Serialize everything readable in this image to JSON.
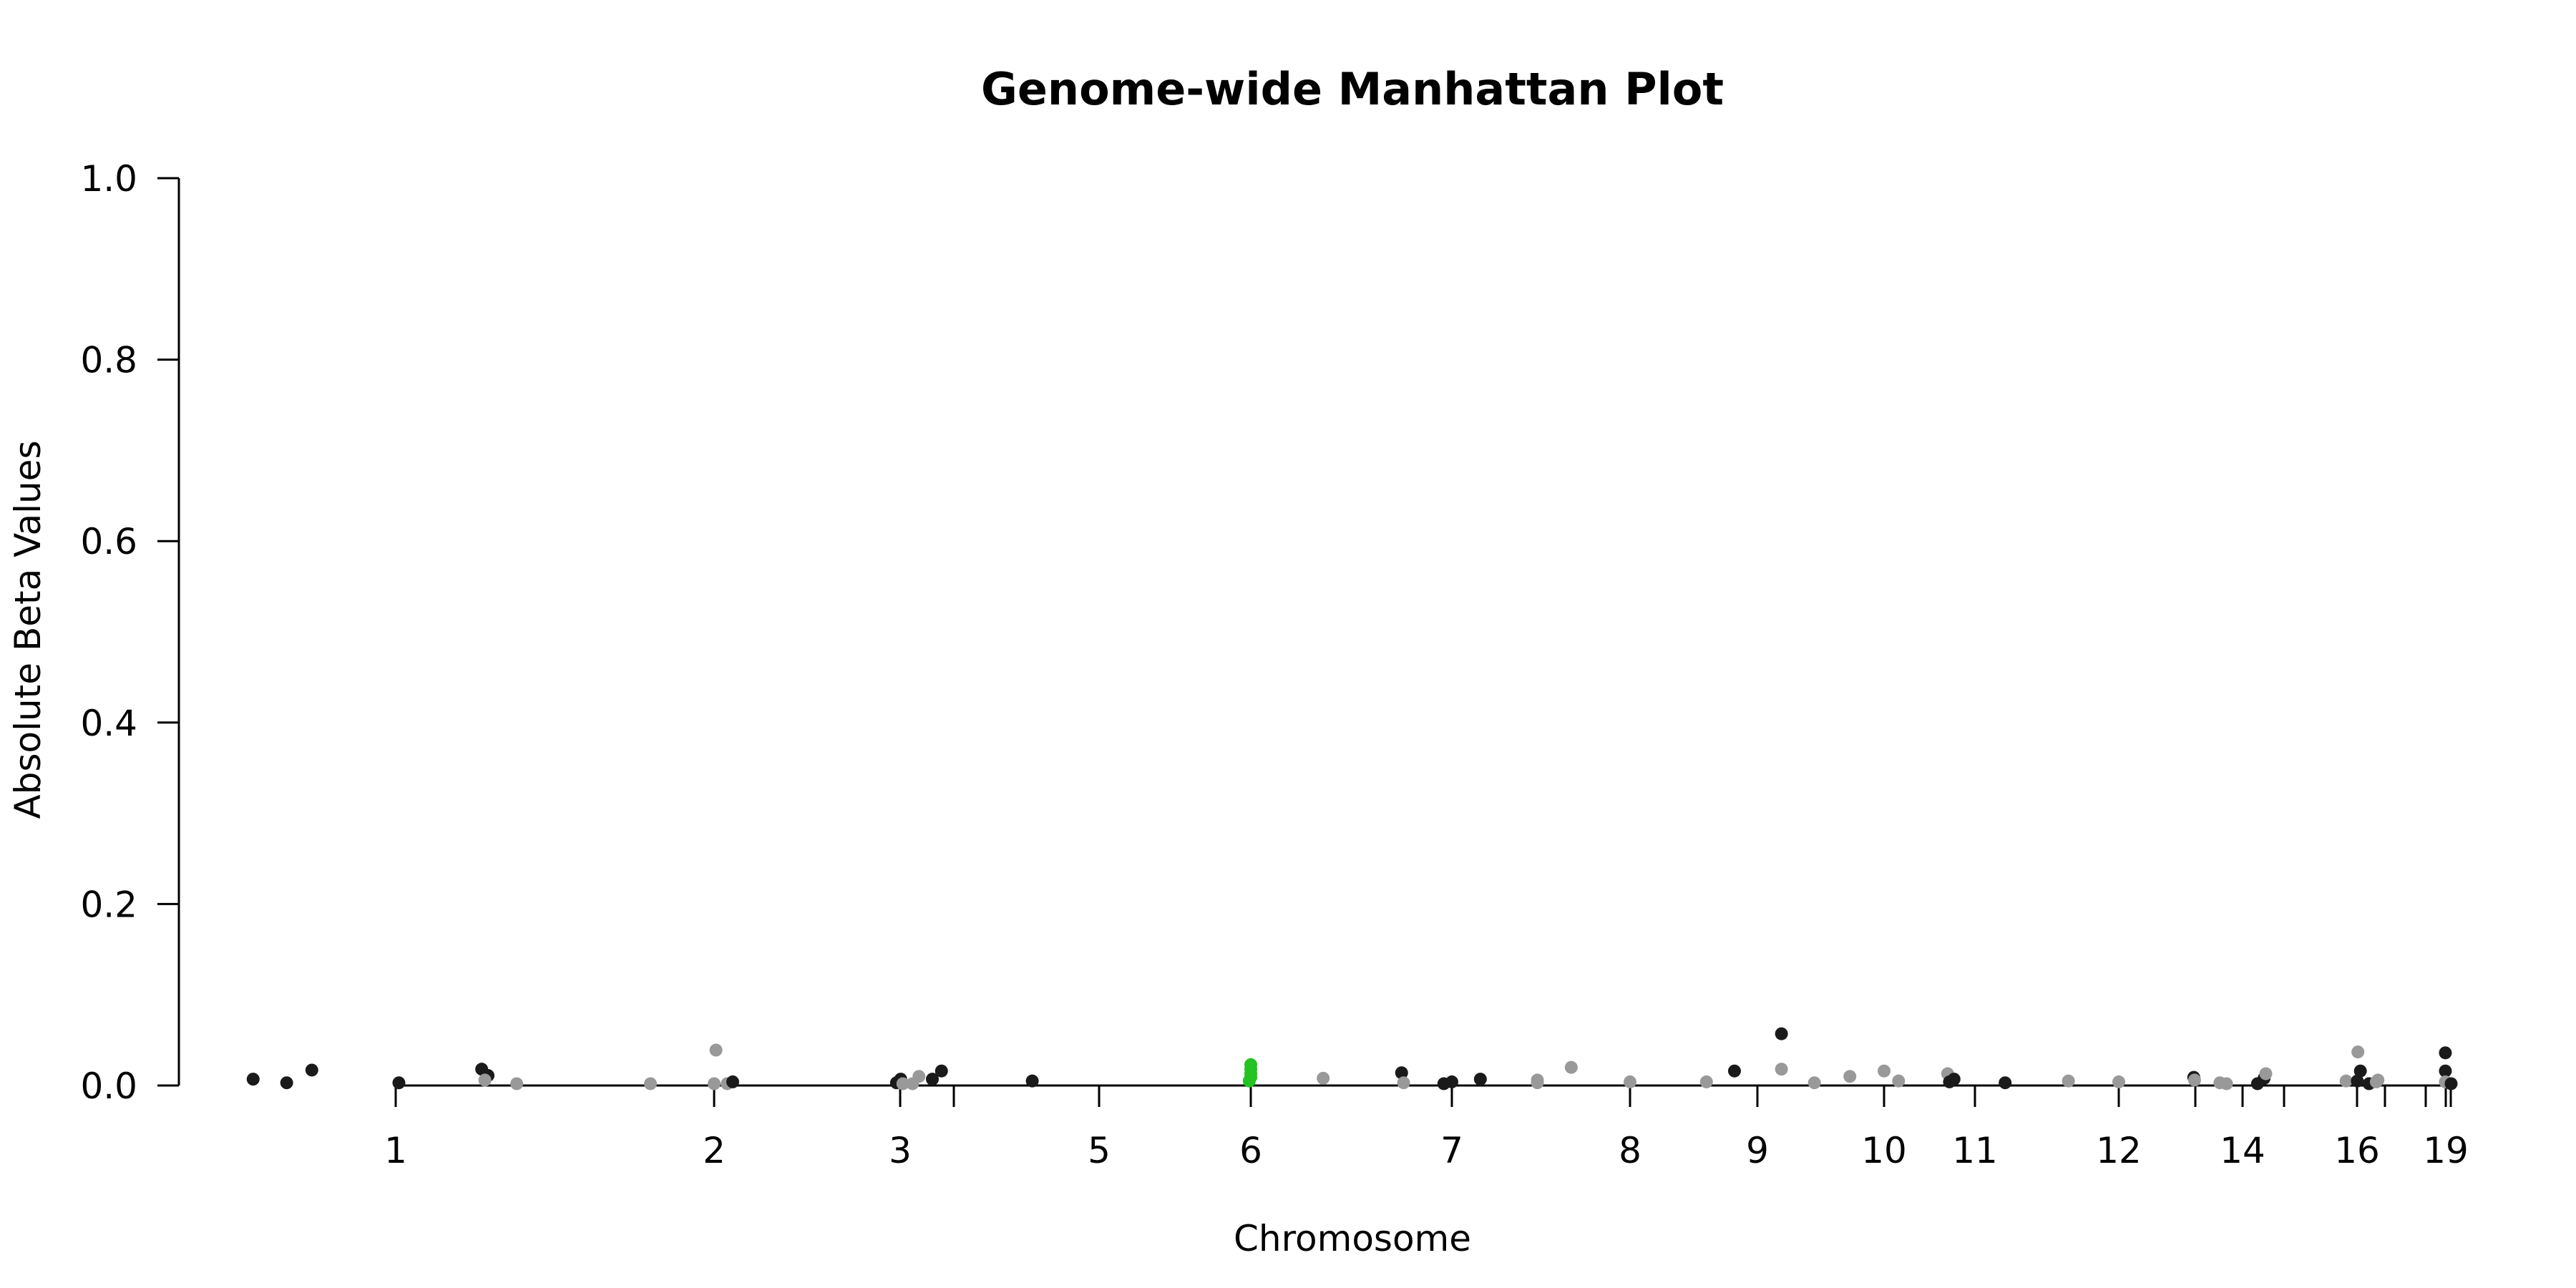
{
  "chart_data": {
    "type": "scatter",
    "title": "Genome-wide Manhattan Plot",
    "xlabel": "Chromosome",
    "ylabel": "Absolute Beta Values",
    "ylim": [
      0,
      1.0
    ],
    "y_ticks": [
      "0.0",
      "0.2",
      "0.4",
      "0.6",
      "0.8",
      "1.0"
    ],
    "x_ticks": [
      {
        "label": "1",
        "pos": 1.0
      },
      {
        "label": "2",
        "pos": 2.0
      },
      {
        "label": "3",
        "pos": 3.0
      },
      {
        "label": "",
        "pos": 4.0
      },
      {
        "label": "5",
        "pos": 5.0
      },
      {
        "label": "6",
        "pos": 6.0
      },
      {
        "label": "7",
        "pos": 7.0
      },
      {
        "label": "8",
        "pos": 8.0
      },
      {
        "label": "9",
        "pos": 9.0
      },
      {
        "label": "10",
        "pos": 10.0
      },
      {
        "label": "11",
        "pos": 11.0
      },
      {
        "label": "12",
        "pos": 12.0
      },
      {
        "label": "",
        "pos": 13.0
      },
      {
        "label": "14",
        "pos": 14.0
      },
      {
        "label": "",
        "pos": 15.0
      },
      {
        "label": "16",
        "pos": 16.0
      },
      {
        "label": "",
        "pos": 17.0
      },
      {
        "label": "",
        "pos": 18.0
      },
      {
        "label": "19",
        "pos": 19.0
      },
      {
        "label": "",
        "pos": 19.05
      }
    ],
    "colors": {
      "dark": "#1a1a1a",
      "light": "#999999",
      "highlight": "#22c322"
    },
    "points": [
      {
        "x": 0.32,
        "y": 0.007,
        "c": "dark"
      },
      {
        "x": 0.48,
        "y": 0.003,
        "c": "dark"
      },
      {
        "x": 0.6,
        "y": 0.017,
        "c": "dark"
      },
      {
        "x": 1.01,
        "y": 0.003,
        "c": "dark"
      },
      {
        "x": 1.27,
        "y": 0.018,
        "c": "dark"
      },
      {
        "x": 1.29,
        "y": 0.011,
        "c": "dark"
      },
      {
        "x": 1.28,
        "y": 0.006,
        "c": "light"
      },
      {
        "x": 1.38,
        "y": 0.002,
        "c": "light"
      },
      {
        "x": 1.8,
        "y": 0.002,
        "c": "light"
      },
      {
        "x": 2.0,
        "y": 0.002,
        "c": "light"
      },
      {
        "x": 2.01,
        "y": 0.039,
        "c": "light"
      },
      {
        "x": 2.07,
        "y": 0.002,
        "c": "light"
      },
      {
        "x": 2.1,
        "y": 0.004,
        "c": "dark"
      },
      {
        "x": 2.98,
        "y": 0.003,
        "c": "dark"
      },
      {
        "x": 3.01,
        "y": 0.007,
        "c": "dark"
      },
      {
        "x": 3.05,
        "y": 0.002,
        "c": "light"
      },
      {
        "x": 3.23,
        "y": 0.002,
        "c": "light"
      },
      {
        "x": 3.35,
        "y": 0.01,
        "c": "light"
      },
      {
        "x": 3.6,
        "y": 0.007,
        "c": "dark"
      },
      {
        "x": 3.77,
        "y": 0.016,
        "c": "dark"
      },
      {
        "x": 4.54,
        "y": 0.005,
        "c": "dark"
      },
      {
        "x": 5.99,
        "y": 0.005,
        "c": "highlight"
      },
      {
        "x": 6.0,
        "y": 0.009,
        "c": "highlight"
      },
      {
        "x": 6.0,
        "y": 0.013,
        "c": "highlight"
      },
      {
        "x": 6.0,
        "y": 0.018,
        "c": "highlight"
      },
      {
        "x": 6.0,
        "y": 0.023,
        "c": "highlight"
      },
      {
        "x": 6.36,
        "y": 0.008,
        "c": "light"
      },
      {
        "x": 6.75,
        "y": 0.014,
        "c": "dark"
      },
      {
        "x": 6.76,
        "y": 0.003,
        "c": "light"
      },
      {
        "x": 6.96,
        "y": 0.002,
        "c": "dark"
      },
      {
        "x": 7.0,
        "y": 0.004,
        "c": "dark"
      },
      {
        "x": 7.16,
        "y": 0.007,
        "c": "dark"
      },
      {
        "x": 7.48,
        "y": 0.006,
        "c": "light"
      },
      {
        "x": 7.48,
        "y": 0.003,
        "c": "light"
      },
      {
        "x": 7.67,
        "y": 0.02,
        "c": "light"
      },
      {
        "x": 8.0,
        "y": 0.004,
        "c": "light"
      },
      {
        "x": 8.6,
        "y": 0.004,
        "c": "light"
      },
      {
        "x": 8.82,
        "y": 0.016,
        "c": "dark"
      },
      {
        "x": 9.19,
        "y": 0.057,
        "c": "dark"
      },
      {
        "x": 9.19,
        "y": 0.018,
        "c": "light"
      },
      {
        "x": 9.45,
        "y": 0.003,
        "c": "light"
      },
      {
        "x": 9.73,
        "y": 0.01,
        "c": "light"
      },
      {
        "x": 10.0,
        "y": 0.016,
        "c": "light"
      },
      {
        "x": 10.16,
        "y": 0.005,
        "c": "light"
      },
      {
        "x": 10.7,
        "y": 0.013,
        "c": "light"
      },
      {
        "x": 10.72,
        "y": 0.004,
        "c": "dark"
      },
      {
        "x": 10.77,
        "y": 0.007,
        "c": "dark"
      },
      {
        "x": 11.21,
        "y": 0.003,
        "c": "dark"
      },
      {
        "x": 11.65,
        "y": 0.005,
        "c": "light"
      },
      {
        "x": 12.0,
        "y": 0.004,
        "c": "light"
      },
      {
        "x": 12.98,
        "y": 0.009,
        "c": "dark"
      },
      {
        "x": 12.99,
        "y": 0.006,
        "c": "light"
      },
      {
        "x": 13.52,
        "y": 0.003,
        "c": "light"
      },
      {
        "x": 13.66,
        "y": 0.002,
        "c": "light"
      },
      {
        "x": 14.36,
        "y": 0.002,
        "c": "dark"
      },
      {
        "x": 14.52,
        "y": 0.008,
        "c": "dark"
      },
      {
        "x": 14.56,
        "y": 0.013,
        "c": "light"
      },
      {
        "x": 15.85,
        "y": 0.005,
        "c": "light"
      },
      {
        "x": 16.03,
        "y": 0.037,
        "c": "light"
      },
      {
        "x": 16.01,
        "y": 0.005,
        "c": "dark"
      },
      {
        "x": 16.12,
        "y": 0.016,
        "c": "dark"
      },
      {
        "x": 16.43,
        "y": 0.002,
        "c": "dark"
      },
      {
        "x": 16.75,
        "y": 0.006,
        "c": "light"
      },
      {
        "x": 16.69,
        "y": 0.004,
        "c": "light"
      },
      {
        "x": 18.98,
        "y": 0.036,
        "c": "dark"
      },
      {
        "x": 18.98,
        "y": 0.016,
        "c": "dark"
      },
      {
        "x": 18.98,
        "y": 0.004,
        "c": "light"
      },
      {
        "x": 19.08,
        "y": 0.002,
        "c": "dark"
      }
    ]
  }
}
